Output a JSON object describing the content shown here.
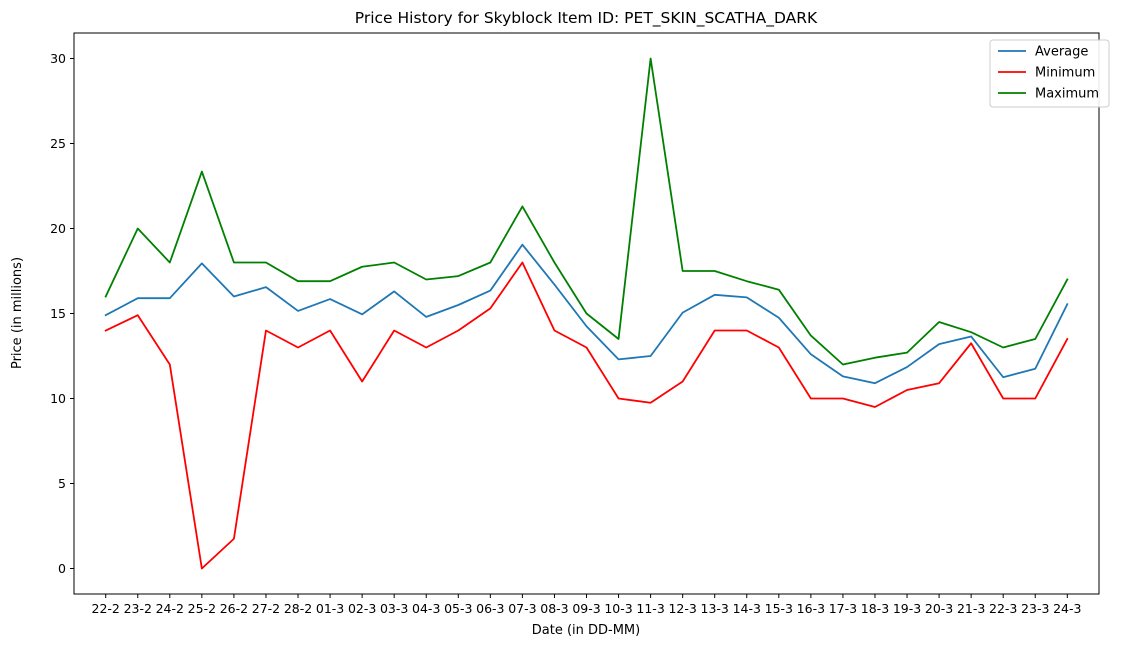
{
  "chart_data": {
    "type": "line",
    "title": "Price History for Skyblock Item ID: PET_SKIN_SCATHA_DARK",
    "xlabel": "Date (in DD-MM)",
    "ylabel": "Price (in millions)",
    "categories": [
      "22-2",
      "23-2",
      "24-2",
      "25-2",
      "26-2",
      "27-2",
      "28-2",
      "01-3",
      "02-3",
      "03-3",
      "04-3",
      "05-3",
      "06-3",
      "07-3",
      "08-3",
      "09-3",
      "10-3",
      "11-3",
      "12-3",
      "13-3",
      "14-3",
      "15-3",
      "16-3",
      "17-3",
      "18-3",
      "19-3",
      "20-3",
      "21-3",
      "22-3",
      "23-3",
      "24-3"
    ],
    "yticks": [
      0,
      5,
      10,
      15,
      20,
      25,
      30
    ],
    "ylim": [
      -1.5,
      31.5
    ],
    "grid": false,
    "legend": "top-right",
    "series": [
      {
        "name": "Average",
        "color": "#1f77b4",
        "values": [
          14.9,
          15.9,
          15.9,
          17.95,
          16.0,
          16.55,
          15.15,
          15.85,
          14.95,
          16.3,
          14.8,
          15.5,
          16.35,
          19.05,
          16.7,
          14.25,
          12.3,
          12.5,
          15.05,
          16.1,
          15.95,
          14.75,
          12.6,
          11.3,
          10.9,
          11.85,
          13.2,
          13.65,
          11.25,
          11.75,
          15.55
        ]
      },
      {
        "name": "Minimum",
        "color": "#ff0000",
        "values": [
          14.0,
          14.9,
          12.0,
          0.0,
          1.75,
          14.0,
          13.0,
          14.0,
          11.0,
          14.0,
          13.0,
          14.0,
          15.3,
          18.0,
          14.0,
          13.0,
          10.0,
          9.75,
          11.0,
          14.0,
          14.0,
          13.0,
          10.0,
          10.0,
          9.5,
          10.5,
          10.9,
          13.25,
          10.0,
          10.0,
          13.5
        ]
      },
      {
        "name": "Maximum",
        "color": "#008000",
        "values": [
          16.0,
          20.0,
          18.0,
          23.35,
          18.0,
          18.0,
          16.9,
          16.9,
          17.75,
          18.0,
          17.0,
          17.2,
          18.0,
          21.3,
          18.0,
          15.0,
          13.5,
          30.0,
          17.5,
          17.5,
          16.9,
          16.4,
          13.7,
          12.0,
          12.4,
          12.7,
          14.5,
          13.9,
          13.0,
          13.5,
          17.0
        ]
      }
    ]
  }
}
